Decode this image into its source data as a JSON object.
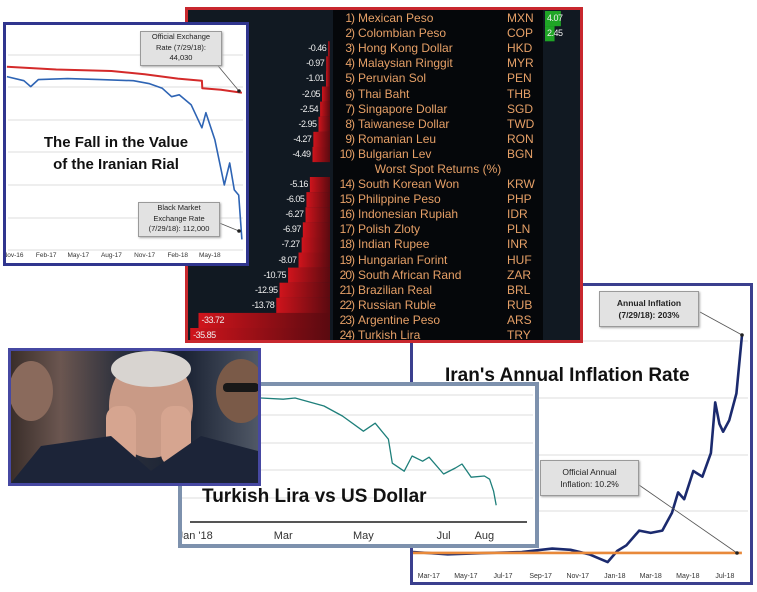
{
  "bloomberg": {
    "best_rows": [
      {
        "rank": "1)",
        "name": "Mexican Peso",
        "code": "MXN",
        "value": 4.07
      },
      {
        "rank": "2)",
        "name": "Colombian Peso",
        "code": "COP",
        "value": 2.45
      },
      {
        "rank": "3)",
        "name": "Hong Kong Dollar",
        "code": "HKD",
        "value": -0.46
      },
      {
        "rank": "4)",
        "name": "Malaysian Ringgit",
        "code": "MYR",
        "value": -0.97
      },
      {
        "rank": "5)",
        "name": "Peruvian Sol",
        "code": "PEN",
        "value": -1.01
      },
      {
        "rank": "6)",
        "name": "Thai Baht",
        "code": "THB",
        "value": -2.05
      },
      {
        "rank": "7)",
        "name": "Singapore Dollar",
        "code": "SGD",
        "value": -2.54
      },
      {
        "rank": "8)",
        "name": "Taiwanese Dollar",
        "code": "TWD",
        "value": -2.95
      },
      {
        "rank": "9)",
        "name": "Romanian Leu",
        "code": "RON",
        "value": -4.27
      },
      {
        "rank": "10)",
        "name": "Bulgarian Lev",
        "code": "BGN",
        "value": -4.49
      }
    ],
    "worst_header": "Worst Spot Returns (%)",
    "worst_rows": [
      {
        "rank": "14)",
        "name": "South Korean Won",
        "code": "KRW",
        "value": -5.16
      },
      {
        "rank": "15)",
        "name": "Philippine Peso",
        "code": "PHP",
        "value": -6.05
      },
      {
        "rank": "16)",
        "name": "Indonesian Rupiah",
        "code": "IDR",
        "value": -6.27
      },
      {
        "rank": "17)",
        "name": "Polish Zloty",
        "code": "PLN",
        "value": -6.97
      },
      {
        "rank": "18)",
        "name": "Indian Rupee",
        "code": "INR",
        "value": -7.27
      },
      {
        "rank": "19)",
        "name": "Hungarian Forint",
        "code": "HUF",
        "value": -8.07
      },
      {
        "rank": "20)",
        "name": "South African Rand",
        "code": "ZAR",
        "value": -10.75
      },
      {
        "rank": "21)",
        "name": "Brazilian Real",
        "code": "BRL",
        "value": -12.95
      },
      {
        "rank": "22)",
        "name": "Russian Ruble",
        "code": "RUB",
        "value": -13.78
      },
      {
        "rank": "23)",
        "name": "Argentine Peso",
        "code": "ARS",
        "value": -33.72
      },
      {
        "rank": "24)",
        "name": "Turkish Lira",
        "code": "TRY",
        "value": -35.85
      }
    ],
    "colors": {
      "negative": "#c4141c",
      "positive": "#1fa526",
      "text": "#e6a067"
    }
  },
  "chart_data": [
    {
      "id": "rial",
      "type": "line",
      "title": "The Fall in the Value of the Iranian Rial",
      "x_ticks": [
        "Nov-16",
        "Feb-17",
        "May-17",
        "Aug-17",
        "Nov-17",
        "Feb-18",
        "May-18"
      ],
      "x_tick_dates": [
        "2016-11-01",
        "2017-02-01",
        "2017-05-01",
        "2017-08-01",
        "2017-11-01",
        "2018-02-01",
        "2018-05-01"
      ],
      "xlim": [
        "2016-10-18",
        "2018-08-01"
      ],
      "ylim": [
        15000,
        116000
      ],
      "y_inverted": true,
      "grid": true,
      "series": [
        {
          "color": "#d42a2a",
          "points": [
            [
              "2016-10-15",
              32000
            ],
            [
              "2017-03-01",
              33300
            ],
            [
              "2017-08-01",
              34000
            ],
            [
              "2017-11-01",
              35500
            ],
            [
              "2018-02-01",
              37500
            ],
            [
              "2018-04-09",
              38500
            ],
            [
              "2018-04-10",
              42000
            ],
            [
              "2018-06-01",
              42700
            ],
            [
              "2018-07-29",
              44030
            ]
          ]
        },
        {
          "color": "#2e64b4",
          "points": [
            [
              "2016-10-15",
              36590
            ],
            [
              "2016-12-01",
              38500
            ],
            [
              "2016-12-20",
              41200
            ],
            [
              "2017-01-10",
              37990
            ],
            [
              "2017-04-01",
              37500
            ],
            [
              "2017-07-01",
              37990
            ],
            [
              "2017-10-01",
              38500
            ],
            [
              "2017-11-15",
              39900
            ],
            [
              "2017-12-20",
              42000
            ],
            [
              "2018-01-15",
              45900
            ],
            [
              "2018-02-05",
              45000
            ],
            [
              "2018-03-10",
              49600
            ],
            [
              "2018-04-09",
              60300
            ],
            [
              "2018-04-20",
              53300
            ],
            [
              "2018-05-15",
              65900
            ],
            [
              "2018-06-10",
              86800
            ],
            [
              "2018-06-25",
              76600
            ],
            [
              "2018-07-08",
              89100
            ],
            [
              "2018-07-20",
              91500
            ],
            [
              "2018-07-29",
              112000
            ]
          ]
        }
      ],
      "annotations": [
        {
          "text": "Official Exchange Rate (7/29/18): 44,030",
          "lines": [
            "Official Exchange",
            "Rate (7/29/18):",
            "44,030"
          ]
        },
        {
          "text": "Black Market Exchange Rate (7/29/18): 112,000",
          "lines": [
            "Black Market",
            "Exchange Rate",
            "(7/29/18): 112,000"
          ]
        }
      ],
      "title_lines": [
        "The Fall in the Value",
        "of the Iranian Rial"
      ]
    },
    {
      "id": "lira",
      "type": "line",
      "title": "Turkish Lira vs US Dollar",
      "x_ticks": [
        "Jan '18",
        "Mar",
        "May",
        "Jul",
        "Aug"
      ],
      "x_tick_dates": [
        "2017-12-24",
        "2018-03-01",
        "2018-05-01",
        "2018-07-01",
        "2018-08-01"
      ],
      "xlim": [
        "2017-12-14",
        "2018-09-07"
      ],
      "ylim": [
        3.5,
        6.8
      ],
      "y_inverted": true,
      "grid": true,
      "series": [
        {
          "color": "#1e7f7a",
          "points": [
            [
              "2018-01-01",
              3.76
            ],
            [
              "2018-01-20",
              3.74
            ],
            [
              "2018-02-12",
              3.75
            ],
            [
              "2018-03-01",
              3.78
            ],
            [
              "2018-03-10",
              3.75
            ],
            [
              "2018-04-01",
              3.95
            ],
            [
              "2018-04-15",
              4.2
            ],
            [
              "2018-05-01",
              4.58
            ],
            [
              "2018-05-10",
              4.38
            ],
            [
              "2018-05-20",
              4.78
            ],
            [
              "2018-05-23",
              5.38
            ],
            [
              "2018-06-01",
              5.58
            ],
            [
              "2018-06-07",
              5.2
            ],
            [
              "2018-06-15",
              5.33
            ],
            [
              "2018-06-20",
              5.23
            ],
            [
              "2018-07-01",
              5.65
            ],
            [
              "2018-07-10",
              5.5
            ],
            [
              "2018-07-15",
              5.4
            ],
            [
              "2018-07-22",
              5.73
            ],
            [
              "2018-08-01",
              5.7
            ],
            [
              "2018-08-05",
              5.78
            ],
            [
              "2018-08-08",
              6.08
            ],
            [
              "2018-08-10",
              6.43
            ]
          ]
        }
      ]
    },
    {
      "id": "inflation",
      "type": "line",
      "title": "Iran's Annual Inflation Rate",
      "x_ticks": [
        "Mar-17",
        "May-17",
        "Jul-17",
        "Sep-17",
        "Nov-17",
        "Jan-18",
        "Mar-18",
        "May-18",
        "Jul-18"
      ],
      "x_tick_dates": [
        "2017-03-01",
        "2017-05-01",
        "2017-07-01",
        "2017-09-01",
        "2017-11-01",
        "2018-01-01",
        "2018-03-01",
        "2018-05-01",
        "2018-07-01"
      ],
      "xlim": [
        "2017-02-03",
        "2018-08-08"
      ],
      "ylim": [
        -5,
        244
      ],
      "grid": true,
      "series": [
        {
          "color": "#1b2a6e",
          "points": [
            [
              "2017-02-03",
              11
            ],
            [
              "2017-04-01",
              9
            ],
            [
              "2017-06-01",
              10
            ],
            [
              "2017-08-01",
              11
            ],
            [
              "2017-09-20",
              14
            ],
            [
              "2017-10-20",
              13
            ],
            [
              "2017-11-20",
              9
            ],
            [
              "2017-12-20",
              2
            ],
            [
              "2018-01-05",
              12
            ],
            [
              "2018-01-20",
              17
            ],
            [
              "2018-02-10",
              30
            ],
            [
              "2018-03-01",
              28
            ],
            [
              "2018-03-20",
              30
            ],
            [
              "2018-04-05",
              46
            ],
            [
              "2018-04-15",
              64
            ],
            [
              "2018-04-25",
              58
            ],
            [
              "2018-05-10",
              83
            ],
            [
              "2018-05-25",
              78
            ],
            [
              "2018-06-08",
              99
            ],
            [
              "2018-06-15",
              144
            ],
            [
              "2018-06-22",
              125
            ],
            [
              "2018-06-28",
              118
            ],
            [
              "2018-07-08",
              128
            ],
            [
              "2018-07-20",
              152
            ],
            [
              "2018-07-29",
              203
            ]
          ]
        },
        {
          "color": "#e8893a",
          "points": [
            [
              "2017-02-03",
              10.2
            ],
            [
              "2018-07-29",
              10.2
            ]
          ]
        }
      ],
      "annotations": [
        {
          "text": "Annual Inflation (7/29/18): 203%",
          "lines": [
            "Annual Inflation",
            "(7/29/18): 203%"
          ]
        },
        {
          "text": "Official Annual Inflation: 10.2%",
          "lines": [
            "Official Annual",
            "Inflation: 10.2%"
          ]
        }
      ]
    }
  ]
}
